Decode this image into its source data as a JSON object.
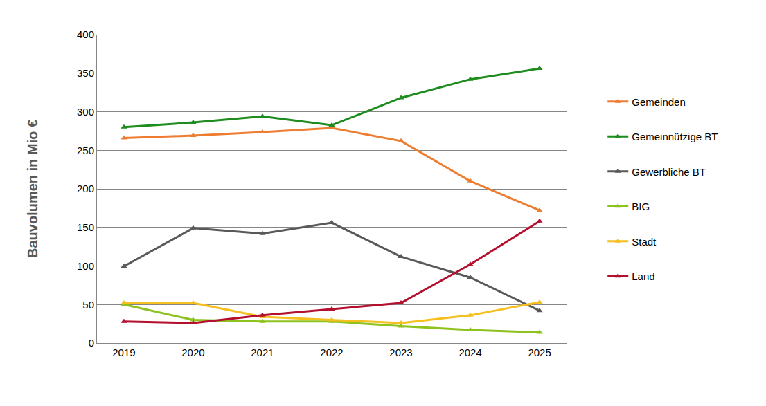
{
  "chart_data": {
    "type": "line",
    "y_label": "Bauvolumen in Mio €",
    "categories": [
      "2019",
      "2020",
      "2021",
      "2022",
      "2023",
      "2024",
      "2025"
    ],
    "series": [
      {
        "name": "Gemeinden",
        "color": "#ED7D31",
        "marker": "triangle-up",
        "line_style": "solid",
        "values": [
          266,
          269,
          273.5,
          279,
          262,
          210,
          172
        ]
      },
      {
        "name": "Gemeinnützige BT",
        "color": "#1E8C1E",
        "marker": "triangle-up",
        "line_style": "solid",
        "values": [
          280,
          286,
          294,
          282.5,
          318,
          342,
          356
        ]
      },
      {
        "name": "Gewerbliche BT",
        "color": "#595959",
        "marker": "triangle-up",
        "line_style": "solid",
        "values": [
          99.5,
          149,
          142,
          156,
          112,
          85,
          42
        ]
      },
      {
        "name": "BIG",
        "color": "#8DC21F",
        "marker": "triangle-up",
        "line_style": "solid",
        "values": [
          50,
          30,
          28,
          28,
          22,
          17,
          14
        ]
      },
      {
        "name": "Stadt",
        "color": "#F5C01F",
        "marker": "triangle-up",
        "line_style": "solid",
        "values": [
          52,
          52,
          34,
          30,
          26,
          36,
          53
        ]
      },
      {
        "name": "Land",
        "color": "#B3102E",
        "marker": "triangle-up",
        "line_style": "solid",
        "values": [
          28,
          26,
          36,
          44,
          52,
          102,
          158
        ]
      }
    ],
    "ylim": [
      0,
      400
    ],
    "yticks": [
      0,
      50,
      100,
      150,
      200,
      250,
      300,
      350,
      400
    ],
    "grid": true,
    "legend": "right"
  }
}
